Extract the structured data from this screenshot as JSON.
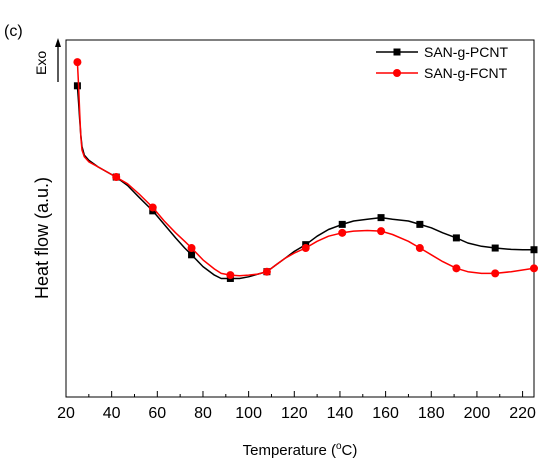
{
  "panel_label": "(c)",
  "exo_label": "Exo",
  "chart_data": {
    "type": "line",
    "xlabel_main": "Temperature (",
    "xlabel_sup": "o",
    "xlabel_end": "C)",
    "ylabel": "Heat flow (a.u.)",
    "xlim": [
      20,
      225
    ],
    "ylim": [
      0,
      100
    ],
    "xticks": [
      20,
      40,
      60,
      80,
      100,
      120,
      140,
      160,
      180,
      200,
      220
    ],
    "grid": false,
    "legend_position": "top-right",
    "series": [
      {
        "name": "SAN-g-PCNT",
        "color": "#000000",
        "marker": "square",
        "markers": [
          [
            25,
            90
          ],
          [
            42,
            63
          ],
          [
            58,
            53
          ],
          [
            75,
            40
          ],
          [
            92,
            33
          ],
          [
            108,
            35
          ],
          [
            125,
            43
          ],
          [
            141,
            49
          ],
          [
            158,
            51
          ],
          [
            175,
            49
          ],
          [
            191,
            45
          ],
          [
            208,
            42
          ],
          [
            225,
            41.5
          ]
        ],
        "curve": [
          [
            25,
            90
          ],
          [
            25.5,
            85
          ],
          [
            26,
            80
          ],
          [
            26.5,
            75.5
          ],
          [
            27,
            72
          ],
          [
            28,
            69.5
          ],
          [
            30,
            68
          ],
          [
            34,
            66
          ],
          [
            38,
            64.5
          ],
          [
            42,
            63
          ],
          [
            47,
            60.5
          ],
          [
            52,
            57
          ],
          [
            58,
            53
          ],
          [
            63,
            49
          ],
          [
            68,
            45
          ],
          [
            72,
            42
          ],
          [
            75,
            40
          ],
          [
            80,
            36.5
          ],
          [
            85,
            34
          ],
          [
            88,
            33
          ],
          [
            92,
            33
          ],
          [
            96,
            33
          ],
          [
            100,
            33.5
          ],
          [
            104,
            34.3
          ],
          [
            108,
            35
          ],
          [
            112,
            37
          ],
          [
            116,
            39
          ],
          [
            120,
            41
          ],
          [
            125,
            43
          ],
          [
            130,
            45.5
          ],
          [
            135,
            47.5
          ],
          [
            141,
            49
          ],
          [
            146,
            50
          ],
          [
            152,
            50.5
          ],
          [
            158,
            51
          ],
          [
            163,
            50.5
          ],
          [
            170,
            50
          ],
          [
            175,
            49
          ],
          [
            180,
            48
          ],
          [
            185,
            46.5
          ],
          [
            191,
            45
          ],
          [
            196,
            43.5
          ],
          [
            202,
            42.5
          ],
          [
            208,
            42
          ],
          [
            215,
            41.6
          ],
          [
            220,
            41.5
          ],
          [
            225,
            41.5
          ]
        ]
      },
      {
        "name": "SAN-g-FCNT",
        "color": "#ff0000",
        "marker": "circle",
        "markers": [
          [
            25,
            97
          ],
          [
            42,
            63
          ],
          [
            58,
            54
          ],
          [
            75,
            42
          ],
          [
            92,
            34
          ],
          [
            108,
            35
          ],
          [
            125,
            42
          ],
          [
            141,
            46.5
          ],
          [
            158,
            47
          ],
          [
            175,
            42
          ],
          [
            191,
            36
          ],
          [
            208,
            34.5
          ],
          [
            225,
            36
          ]
        ],
        "curve": [
          [
            25,
            97
          ],
          [
            25.5,
            90
          ],
          [
            26,
            82
          ],
          [
            26.5,
            75
          ],
          [
            27,
            71
          ],
          [
            28,
            69
          ],
          [
            30,
            67.5
          ],
          [
            34,
            66
          ],
          [
            38,
            64.5
          ],
          [
            42,
            63
          ],
          [
            47,
            61
          ],
          [
            52,
            58
          ],
          [
            58,
            54
          ],
          [
            63,
            50
          ],
          [
            68,
            46.5
          ],
          [
            72,
            44
          ],
          [
            75,
            42
          ],
          [
            80,
            38.5
          ],
          [
            85,
            35.8
          ],
          [
            88,
            34.5
          ],
          [
            92,
            34
          ],
          [
            96,
            33.8
          ],
          [
            100,
            34
          ],
          [
            104,
            34.3
          ],
          [
            108,
            35
          ],
          [
            112,
            37
          ],
          [
            116,
            39
          ],
          [
            120,
            40.5
          ],
          [
            125,
            42
          ],
          [
            130,
            44
          ],
          [
            135,
            45.5
          ],
          [
            141,
            46.5
          ],
          [
            146,
            47
          ],
          [
            152,
            47.2
          ],
          [
            158,
            47
          ],
          [
            163,
            46
          ],
          [
            170,
            44
          ],
          [
            175,
            42
          ],
          [
            180,
            40
          ],
          [
            185,
            38
          ],
          [
            191,
            36
          ],
          [
            196,
            35
          ],
          [
            202,
            34.5
          ],
          [
            208,
            34.5
          ],
          [
            215,
            35
          ],
          [
            220,
            35.5
          ],
          [
            225,
            36
          ]
        ]
      }
    ]
  }
}
